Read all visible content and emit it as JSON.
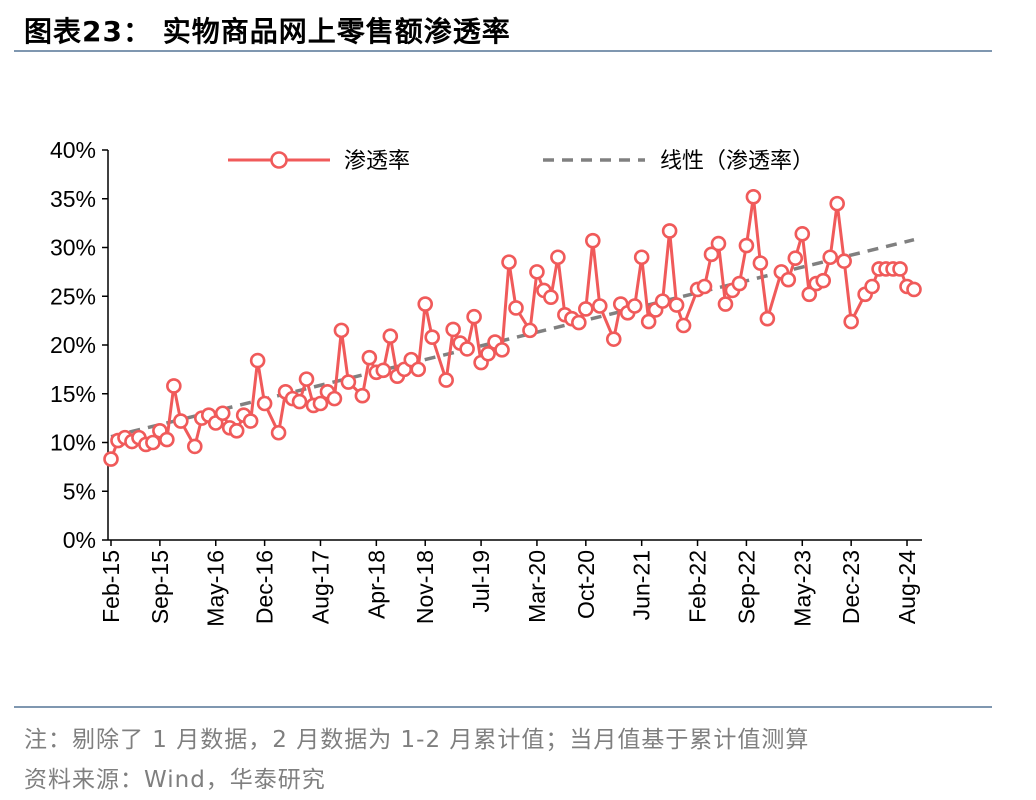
{
  "header": {
    "title": "图表23：  实物商品网上零售额渗透率"
  },
  "footer": {
    "note": "注：剔除了 1 月数据，2 月数据为 1-2 月累计值；当月值基于累计值测算",
    "source": "资料来源：Wind，华泰研究"
  },
  "colors": {
    "series": "#f05a5a",
    "trend": "#808080",
    "rule": "#7f97b0"
  },
  "chart_data": {
    "type": "line",
    "title": "",
    "xlabel": "",
    "ylabel": "",
    "ylim": [
      0,
      40
    ],
    "yticks": [
      "0%",
      "5%",
      "10%",
      "15%",
      "20%",
      "25%",
      "30%",
      "35%",
      "40%"
    ],
    "xtick_labels": [
      "Feb-15",
      "Sep-15",
      "May-16",
      "Dec-16",
      "Aug-17",
      "Apr-18",
      "Nov-18",
      "Jul-19",
      "Mar-20",
      "Oct-20",
      "Jun-21",
      "Feb-22",
      "Sep-22",
      "May-23",
      "Dec-23",
      "Aug-24"
    ],
    "legend_placement": "top",
    "grid": false,
    "series": [
      {
        "name": "渗透率",
        "style": "line-with-hollow-markers",
        "points": [
          {
            "x": "Feb-15",
            "y": 8.3
          },
          {
            "x": "Mar-15",
            "y": 10.2
          },
          {
            "x": "Apr-15",
            "y": 10.5
          },
          {
            "x": "May-15",
            "y": 10.1
          },
          {
            "x": "Jun-15",
            "y": 10.5
          },
          {
            "x": "Jul-15",
            "y": 9.8
          },
          {
            "x": "Aug-15",
            "y": 10.0
          },
          {
            "x": "Sep-15",
            "y": 11.2
          },
          {
            "x": "Oct-15",
            "y": 10.3
          },
          {
            "x": "Nov-15",
            "y": 15.8
          },
          {
            "x": "Dec-15",
            "y": 12.2
          },
          {
            "x": "Feb-16",
            "y": 9.6
          },
          {
            "x": "Mar-16",
            "y": 12.5
          },
          {
            "x": "Apr-16",
            "y": 12.8
          },
          {
            "x": "May-16",
            "y": 12.0
          },
          {
            "x": "Jun-16",
            "y": 13.0
          },
          {
            "x": "Jul-16",
            "y": 11.5
          },
          {
            "x": "Aug-16",
            "y": 11.2
          },
          {
            "x": "Sep-16",
            "y": 12.8
          },
          {
            "x": "Oct-16",
            "y": 12.2
          },
          {
            "x": "Nov-16",
            "y": 18.4
          },
          {
            "x": "Dec-16",
            "y": 14.0
          },
          {
            "x": "Feb-17",
            "y": 11.0
          },
          {
            "x": "Mar-17",
            "y": 15.2
          },
          {
            "x": "Apr-17",
            "y": 14.5
          },
          {
            "x": "May-17",
            "y": 14.2
          },
          {
            "x": "Jun-17",
            "y": 16.5
          },
          {
            "x": "Jul-17",
            "y": 13.8
          },
          {
            "x": "Aug-17",
            "y": 14.0
          },
          {
            "x": "Sep-17",
            "y": 15.2
          },
          {
            "x": "Oct-17",
            "y": 14.5
          },
          {
            "x": "Nov-17",
            "y": 21.5
          },
          {
            "x": "Dec-17",
            "y": 16.2
          },
          {
            "x": "Feb-18",
            "y": 14.8
          },
          {
            "x": "Mar-18",
            "y": 18.7
          },
          {
            "x": "Apr-18",
            "y": 17.2
          },
          {
            "x": "May-18",
            "y": 17.4
          },
          {
            "x": "Jun-18",
            "y": 20.9
          },
          {
            "x": "Jul-18",
            "y": 16.8
          },
          {
            "x": "Aug-18",
            "y": 17.5
          },
          {
            "x": "Sep-18",
            "y": 18.5
          },
          {
            "x": "Oct-18",
            "y": 17.5
          },
          {
            "x": "Nov-18",
            "y": 24.2
          },
          {
            "x": "Dec-18",
            "y": 20.8
          },
          {
            "x": "Feb-19",
            "y": 16.4
          },
          {
            "x": "Mar-19",
            "y": 21.6
          },
          {
            "x": "Apr-19",
            "y": 20.2
          },
          {
            "x": "May-19",
            "y": 19.6
          },
          {
            "x": "Jun-19",
            "y": 22.9
          },
          {
            "x": "Jul-19",
            "y": 18.2
          },
          {
            "x": "Aug-19",
            "y": 19.1
          },
          {
            "x": "Sep-19",
            "y": 20.3
          },
          {
            "x": "Oct-19",
            "y": 19.5
          },
          {
            "x": "Nov-19",
            "y": 28.5
          },
          {
            "x": "Dec-19",
            "y": 23.8
          },
          {
            "x": "Feb-20",
            "y": 21.5
          },
          {
            "x": "Mar-20",
            "y": 27.5
          },
          {
            "x": "Apr-20",
            "y": 25.6
          },
          {
            "x": "May-20",
            "y": 24.9
          },
          {
            "x": "Jun-20",
            "y": 29.0
          },
          {
            "x": "Jul-20",
            "y": 23.1
          },
          {
            "x": "Aug-20",
            "y": 22.7
          },
          {
            "x": "Sep-20",
            "y": 22.3
          },
          {
            "x": "Oct-20",
            "y": 23.7
          },
          {
            "x": "Nov-20",
            "y": 30.7
          },
          {
            "x": "Dec-20",
            "y": 24.0
          },
          {
            "x": "Feb-21",
            "y": 20.6
          },
          {
            "x": "Mar-21",
            "y": 24.2
          },
          {
            "x": "Apr-21",
            "y": 23.3
          },
          {
            "x": "May-21",
            "y": 24.0
          },
          {
            "x": "Jun-21",
            "y": 29.0
          },
          {
            "x": "Jul-21",
            "y": 22.4
          },
          {
            "x": "Aug-21",
            "y": 23.6
          },
          {
            "x": "Sep-21",
            "y": 24.5
          },
          {
            "x": "Oct-21",
            "y": 31.7
          },
          {
            "x": "Nov-21",
            "y": 24.1
          },
          {
            "x": "Dec-21",
            "y": 22.0
          },
          {
            "x": "Feb-22",
            "y": 25.7
          },
          {
            "x": "Mar-22",
            "y": 26.0
          },
          {
            "x": "Apr-22",
            "y": 29.3
          },
          {
            "x": "May-22",
            "y": 30.4
          },
          {
            "x": "Jun-22",
            "y": 24.2
          },
          {
            "x": "Jul-22",
            "y": 25.6
          },
          {
            "x": "Aug-22",
            "y": 26.3
          },
          {
            "x": "Sep-22",
            "y": 30.2
          },
          {
            "x": "Oct-22",
            "y": 35.2
          },
          {
            "x": "Nov-22",
            "y": 28.4
          },
          {
            "x": "Dec-22",
            "y": 22.7
          },
          {
            "x": "Feb-23",
            "y": 27.5
          },
          {
            "x": "Mar-23",
            "y": 26.7
          },
          {
            "x": "Apr-23",
            "y": 28.9
          },
          {
            "x": "May-23",
            "y": 31.4
          },
          {
            "x": "Jun-23",
            "y": 25.2
          },
          {
            "x": "Jul-23",
            "y": 26.3
          },
          {
            "x": "Aug-23",
            "y": 26.6
          },
          {
            "x": "Sep-23",
            "y": 29.0
          },
          {
            "x": "Oct-23",
            "y": 34.5
          },
          {
            "x": "Nov-23",
            "y": 28.6
          },
          {
            "x": "Dec-23",
            "y": 22.4
          },
          {
            "x": "Feb-24",
            "y": 25.2
          },
          {
            "x": "Mar-24",
            "y": 26.0
          },
          {
            "x": "Apr-24",
            "y": 27.8
          },
          {
            "x": "May-24",
            "y": 27.8
          },
          {
            "x": "Jun-24",
            "y": 27.8
          },
          {
            "x": "Jul-24",
            "y": 27.8
          },
          {
            "x": "Aug-24",
            "y": 26.0
          },
          {
            "x": "Sep-24",
            "y": 25.7
          }
        ]
      },
      {
        "name": "线性（渗透率）",
        "style": "dashed-trendline",
        "points": [
          {
            "x": "Feb-15",
            "y": 10.6
          },
          {
            "x": "Sep-24",
            "y": 30.8
          }
        ]
      }
    ]
  }
}
